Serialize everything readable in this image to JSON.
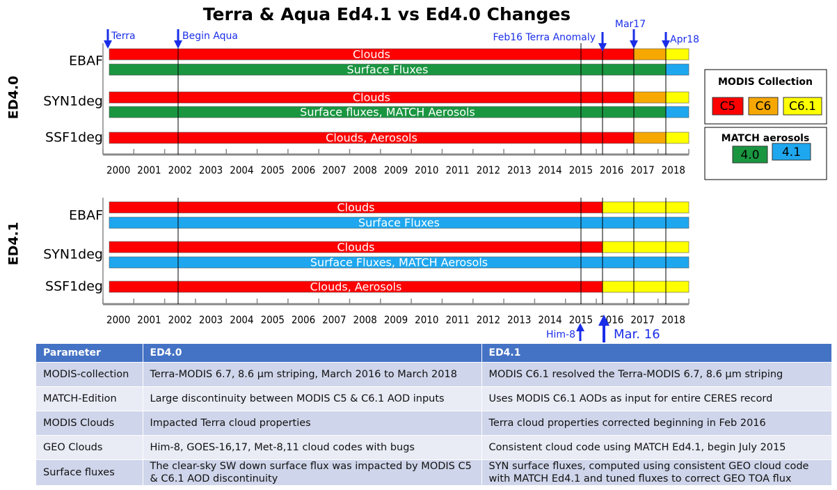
{
  "title": "Terra & Aqua Ed4.1 vs Ed4.0 Changes",
  "panels": [
    {
      "edition": "ED4.0",
      "rows": [
        {
          "product": "EBAF",
          "bars": [
            "Clouds",
            "Surface Fluxes"
          ]
        },
        {
          "product": "SYN1deg",
          "bars": [
            "Clouds",
            "Surface fluxes, MATCH Aerosols"
          ]
        },
        {
          "product": "SSF1deg",
          "bars": [
            "Clouds, Aerosols"
          ]
        }
      ]
    },
    {
      "edition": "ED4.1",
      "rows": [
        {
          "product": "EBAF",
          "bars": [
            "Clouds",
            "Surface Fluxes"
          ]
        },
        {
          "product": "SYN1deg",
          "bars": [
            "Clouds",
            "Surface Fluxes, MATCH Aerosols"
          ]
        },
        {
          "product": "SSF1deg",
          "bars": [
            "Clouds, Aerosols"
          ]
        }
      ]
    }
  ],
  "years": [
    "2000",
    "2001",
    "2002",
    "2003",
    "2004",
    "2005",
    "2006",
    "2007",
    "2008",
    "2009",
    "2010",
    "2011",
    "2012",
    "2013",
    "2014",
    "2015",
    "2016",
    "2017",
    "2018"
  ],
  "markers": {
    "terra": "Terra",
    "aqua": "Begin Aqua",
    "feb16": "Feb16 Terra Anomaly",
    "mar17": "Mar17",
    "apr18": "Apr18",
    "him8": "Him-8",
    "mar16": "Mar. 16"
  },
  "legend": {
    "modis": {
      "title": "MODIS Collection",
      "items": [
        "C5",
        "C6",
        "C6.1"
      ]
    },
    "match": {
      "title": "MATCH aerosols",
      "items": [
        "4.0",
        "4.1"
      ]
    }
  },
  "table": {
    "header": [
      "Parameter",
      "ED4.0",
      "ED4.1"
    ],
    "rows": [
      [
        "MODIS-collection",
        "Terra-MODIS 6.7, 8.6 µm striping, March 2016 to March 2018",
        "MODIS C6.1 resolved the Terra-MODIS 6.7, 8.6 µm  striping"
      ],
      [
        "MATCH-Edition",
        "Large discontinuity between MODIS C5 & C6.1 AOD inputs",
        "Uses MODIS C6.1 AODs as input for entire CERES record"
      ],
      [
        "MODIS Clouds",
        "Impacted Terra cloud properties",
        "Terra cloud properties corrected beginning in Feb 2016"
      ],
      [
        "GEO Clouds",
        "Him-8, GOES-16,17, Met-8,11 cloud codes with bugs",
        "Consistent cloud code using MATCH Ed4.1, begin July 2015"
      ],
      [
        "Surface fluxes",
        "The clear-sky SW down surface flux was impacted by MODIS C5 & C6.1 AOD discontinuity",
        "SYN surface fluxes, computed using consistent GEO cloud code with MATCH Ed4.1 and tuned fluxes to correct GEO TOA flux"
      ]
    ]
  }
}
